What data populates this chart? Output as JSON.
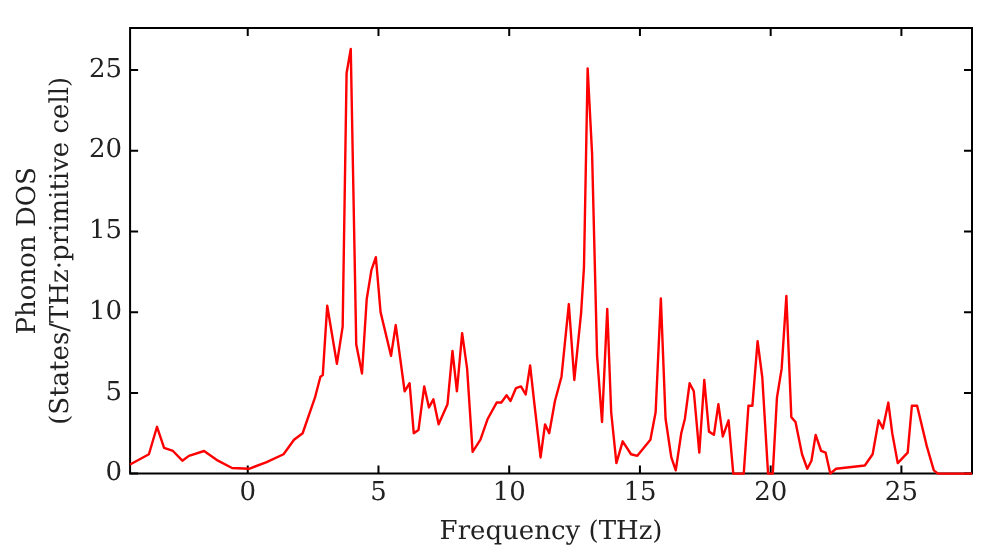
{
  "chart_data": {
    "type": "line",
    "xlabel": "Frequency (THz)",
    "ylabel": "Phonon DOS\n(States/THz·primitive cell)",
    "xlim": [
      -4.5,
      27.7
    ],
    "ylim": [
      0,
      27.6
    ],
    "xticks": [
      0,
      5,
      10,
      15,
      20,
      25
    ],
    "yticks": [
      0,
      5,
      10,
      15,
      20,
      25
    ],
    "grid": false,
    "legend": false,
    "marker": "none",
    "line_style": "solid",
    "series": [
      {
        "color": "#ff0000",
        "x": [
          -4.5,
          -3.78,
          -3.47,
          -3.2,
          -2.86,
          -2.5,
          -2.25,
          -1.67,
          -1.14,
          -0.6,
          0.05,
          0.7,
          1.37,
          1.77,
          2.1,
          2.57,
          2.78,
          2.87,
          3.04,
          3.41,
          3.63,
          3.78,
          3.94,
          4.15,
          4.37,
          4.55,
          4.73,
          4.9,
          5.08,
          5.48,
          5.66,
          6.0,
          6.19,
          6.35,
          6.53,
          6.75,
          6.93,
          7.1,
          7.3,
          7.64,
          7.83,
          8.0,
          8.2,
          8.39,
          8.6,
          8.9,
          9.18,
          9.52,
          9.7,
          9.9,
          10.05,
          10.26,
          10.45,
          10.63,
          10.8,
          10.95,
          11.2,
          11.37,
          11.53,
          11.75,
          12.0,
          12.28,
          12.49,
          12.75,
          12.86,
          13.0,
          13.17,
          13.36,
          13.55,
          13.75,
          13.9,
          14.1,
          14.34,
          14.66,
          14.9,
          15.4,
          15.6,
          15.8,
          15.98,
          16.2,
          16.37,
          16.58,
          16.72,
          16.9,
          17.06,
          17.27,
          17.46,
          17.64,
          17.83,
          18.0,
          18.17,
          18.39,
          18.57,
          18.97,
          19.15,
          19.3,
          19.5,
          19.68,
          19.9,
          20.08,
          20.24,
          20.42,
          20.6,
          20.79,
          20.95,
          21.2,
          21.4,
          21.56,
          21.72,
          21.93,
          22.1,
          22.28,
          22.5,
          23.6,
          23.9,
          24.13,
          24.29,
          24.5,
          24.65,
          24.86,
          25.24,
          25.4,
          25.6,
          25.97,
          26.24,
          26.4,
          27.7
        ],
        "values": [
          0.56,
          1.2,
          2.9,
          1.6,
          1.4,
          0.8,
          1.1,
          1.4,
          0.8,
          0.35,
          0.3,
          0.7,
          1.2,
          2.1,
          2.5,
          4.7,
          6.0,
          6.1,
          10.4,
          6.8,
          9.1,
          24.8,
          26.3,
          8.0,
          6.2,
          10.8,
          12.6,
          13.4,
          10.0,
          7.3,
          9.2,
          5.1,
          5.6,
          2.5,
          2.7,
          5.4,
          4.1,
          4.6,
          3.05,
          4.3,
          7.6,
          5.1,
          8.7,
          6.5,
          1.35,
          2.1,
          3.4,
          4.4,
          4.4,
          4.85,
          4.5,
          5.3,
          5.4,
          4.9,
          6.7,
          4.5,
          1.0,
          3.05,
          2.5,
          4.5,
          6.0,
          10.5,
          5.8,
          9.95,
          12.8,
          25.1,
          19.8,
          7.3,
          3.2,
          10.2,
          3.8,
          0.65,
          2.0,
          1.2,
          1.1,
          2.1,
          3.8,
          10.85,
          3.4,
          1.0,
          0.2,
          2.5,
          3.4,
          5.6,
          5.1,
          1.3,
          5.8,
          2.6,
          2.4,
          4.3,
          2.3,
          3.3,
          0,
          0,
          4.2,
          4.2,
          8.2,
          5.95,
          0,
          0,
          4.7,
          6.5,
          11.0,
          3.5,
          3.2,
          1.2,
          0.3,
          0.8,
          2.4,
          1.4,
          1.3,
          0,
          0.3,
          0.5,
          1.2,
          3.3,
          2.8,
          4.4,
          2.5,
          0.65,
          1.3,
          4.2,
          4.2,
          1.7,
          0.2,
          0,
          0
        ]
      }
    ]
  }
}
